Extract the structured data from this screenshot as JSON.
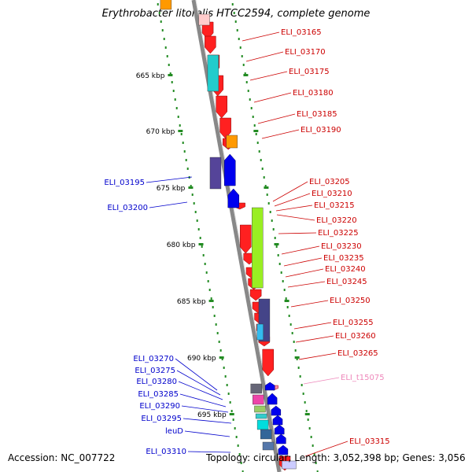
{
  "title": "Erythrobacter litoralis HTCC2594, complete genome",
  "footer": {
    "accession": "Accession: NC_007722",
    "summary": "Topology: circular; Length: 3,052,398 bp; Genes: 3,056"
  },
  "colors": {
    "forward_label": "#cc0000",
    "reverse_label": "#0000cc",
    "rna_label": "#ee88bb",
    "backbone": "#888888",
    "tick": "#228b22"
  },
  "kbp_ticks": [
    "665 kbp",
    "670 kbp",
    "675 kbp",
    "680 kbp",
    "685 kbp",
    "690 kbp",
    "695 kbp"
  ],
  "forward_genes": [
    "ELI_03165",
    "ELI_03170",
    "ELI_03175",
    "ELI_03180",
    "ELI_03185",
    "ELI_03190",
    "ELI_03205",
    "ELI_03210",
    "ELI_03215",
    "ELI_03220",
    "ELI_03225",
    "ELI_03230",
    "ELI_03235",
    "ELI_03240",
    "ELI_03245",
    "ELI_03250",
    "ELI_03255",
    "ELI_03260",
    "ELI_03265",
    "ELI_03315"
  ],
  "rna_genes": [
    "ELI_t15075"
  ],
  "reverse_genes": [
    "ELI_03195",
    "ELI_03200",
    "ELI_03270",
    "ELI_03275",
    "ELI_03280",
    "ELI_03285",
    "ELI_03290",
    "ELI_03295",
    "leuD",
    "ELI_03310"
  ]
}
